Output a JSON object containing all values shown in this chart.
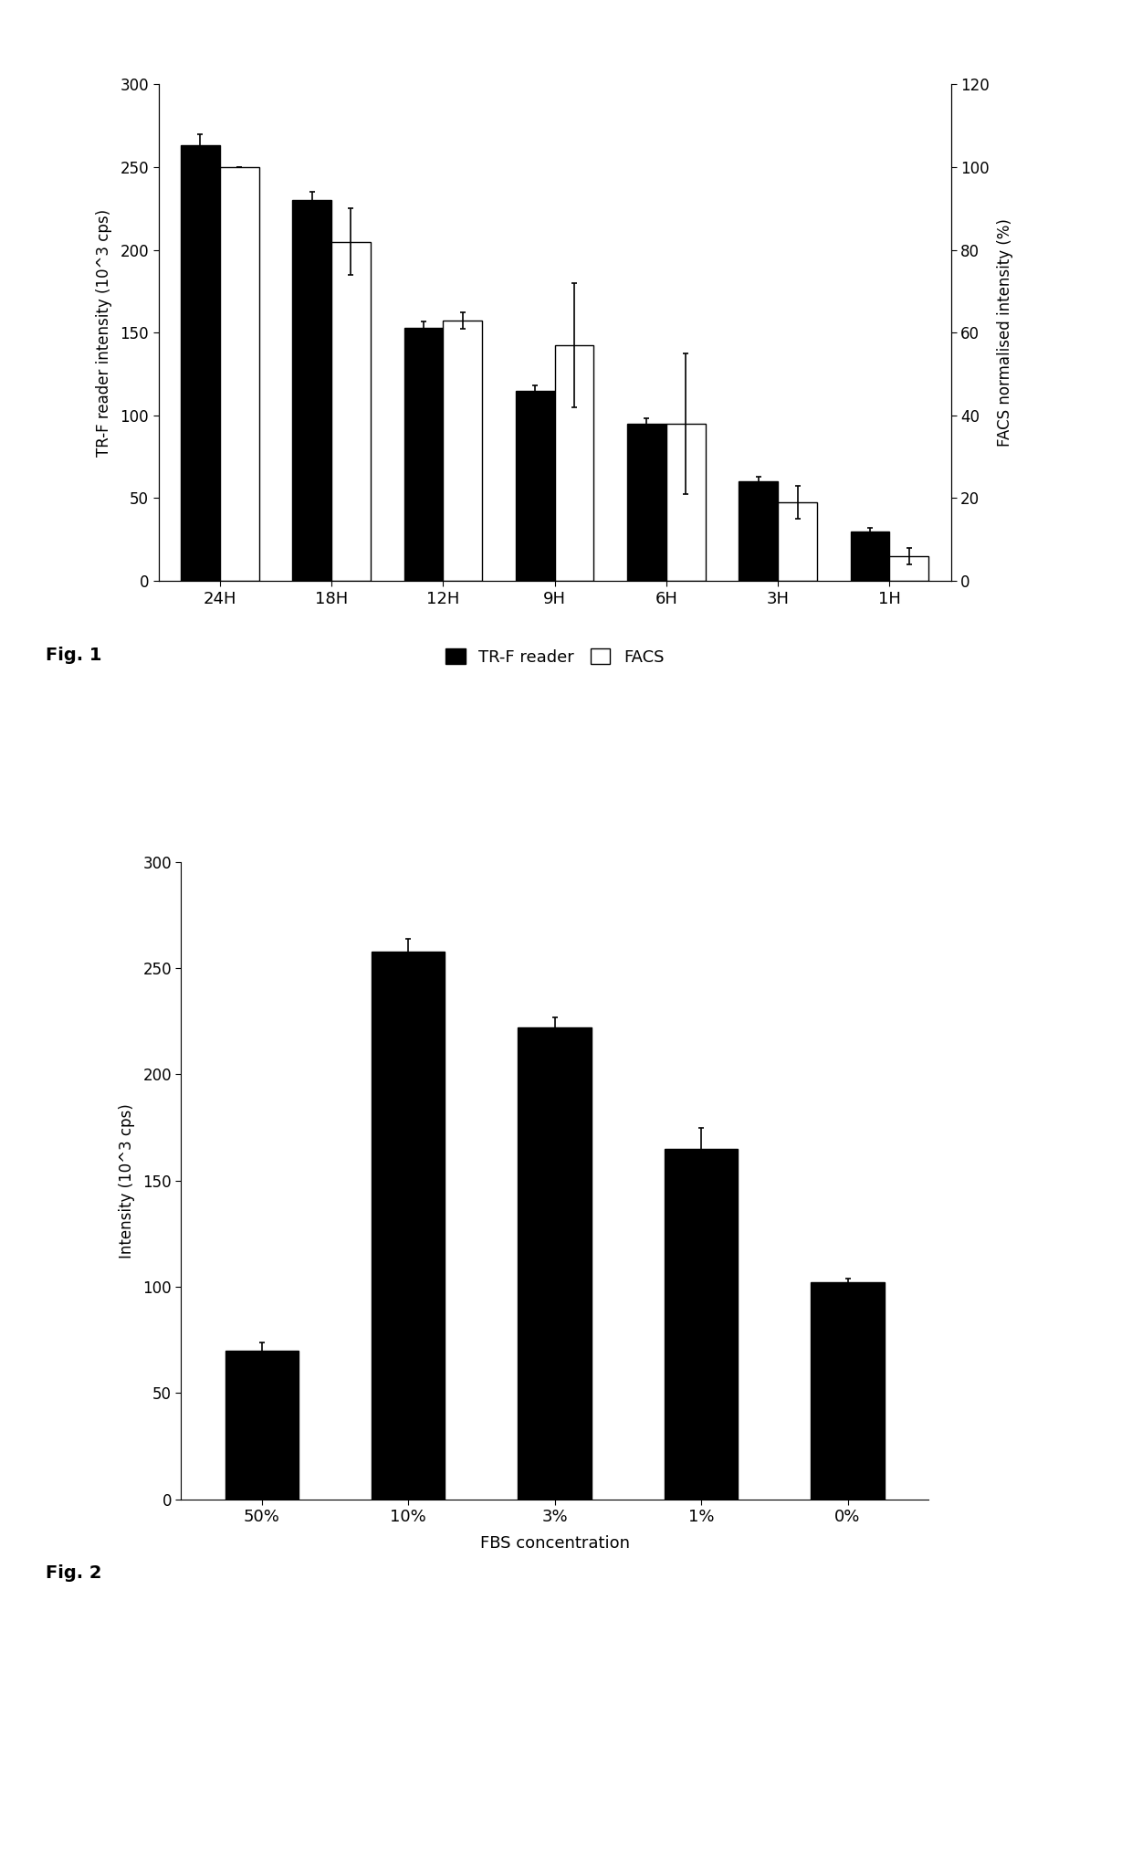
{
  "fig1": {
    "categories": [
      "24H",
      "18H",
      "12H",
      "9H",
      "6H",
      "3H",
      "1H"
    ],
    "trf_values": [
      263,
      230,
      153,
      115,
      95,
      60,
      30
    ],
    "trf_errors": [
      7,
      5,
      4,
      3,
      3,
      3,
      2
    ],
    "facs_values": [
      100,
      82,
      63,
      57,
      38,
      19,
      6
    ],
    "facs_errors": [
      0,
      8,
      2,
      15,
      17,
      4,
      2
    ],
    "ylabel_left": "TR-F reader intensity (10^3 cps)",
    "ylabel_right": "FACS normalised intensity (%)",
    "ylim_left": [
      0,
      300
    ],
    "ylim_right": [
      0,
      120
    ],
    "yticks_left": [
      0,
      50,
      100,
      150,
      200,
      250,
      300
    ],
    "yticks_right": [
      0,
      20,
      40,
      60,
      80,
      100,
      120
    ],
    "legend_labels": [
      "TR-F reader",
      "FACS"
    ],
    "bar_color_trf": "#000000",
    "bar_color_facs": "#ffffff",
    "fig_label": "Fig. 1"
  },
  "fig2": {
    "categories": [
      "50%",
      "10%",
      "3%",
      "1%",
      "0%"
    ],
    "values": [
      70,
      258,
      222,
      165,
      102
    ],
    "errors": [
      4,
      6,
      5,
      10,
      2
    ],
    "ylabel": "Intensity (10^3 cps)",
    "xlabel": "FBS concentration",
    "ylim": [
      0,
      300
    ],
    "yticks": [
      0,
      50,
      100,
      150,
      200,
      250,
      300
    ],
    "bar_color": "#000000",
    "fig_label": "Fig. 2"
  },
  "figure_width": 12.4,
  "figure_height": 20.52,
  "dpi": 100,
  "background_color": "#ffffff"
}
